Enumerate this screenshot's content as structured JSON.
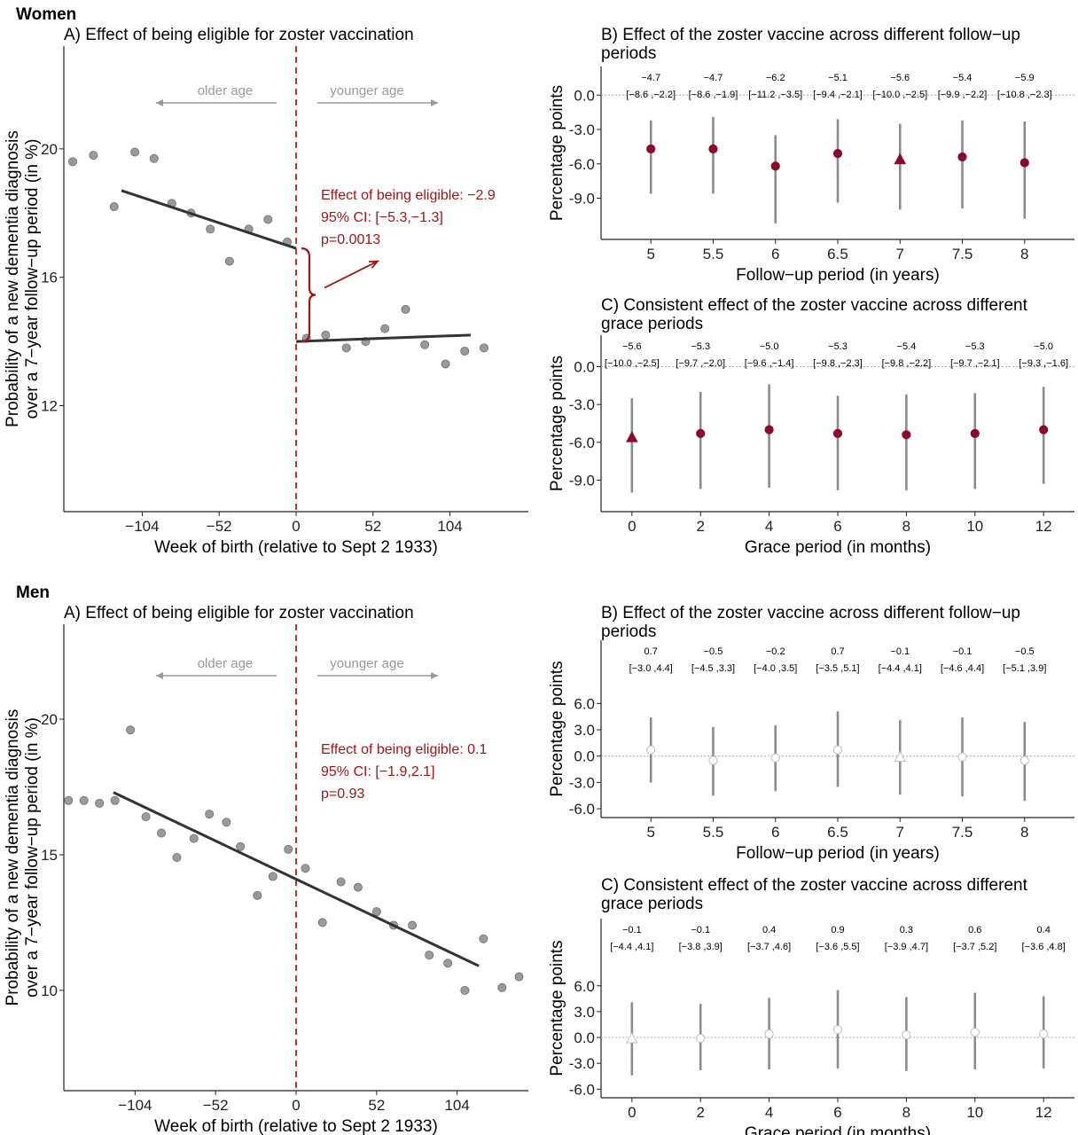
{
  "colors": {
    "point_filled": "#8b0a2b",
    "ci_line": "#8c8c8c",
    "rd_line": "#333333",
    "cutoff": "#c0392b",
    "annotation": "#a31515",
    "arrow_grey": "#999999",
    "scatter_fill": "#9a9a9a"
  },
  "sections": [
    {
      "label": "Women"
    },
    {
      "label": "Men"
    }
  ],
  "chart_data": [
    {
      "id": "women-A",
      "section": "Women",
      "type": "scatter",
      "title": "A) Effect of being eligible for zoster vaccination",
      "xlabel": "Week of birth (relative to Sept 2 1933)",
      "ylabel": "Probability of a new dementia diagnosis\nover a 7−year follow−up period (in %)",
      "xlim": [
        -157,
        157
      ],
      "ylim": [
        8.7,
        23.2
      ],
      "xticks": [
        -104,
        -52,
        0,
        52,
        104
      ],
      "xtick_labels": [
        "−104",
        "−52",
        "0",
        "52",
        "104"
      ],
      "yticks": [
        12,
        16,
        20
      ],
      "ytick_labels": [
        "12",
        "16",
        "20"
      ],
      "direction_labels": {
        "left": "older age",
        "right": "younger age"
      },
      "annotation": [
        "Effect of being eligible: −2.9",
        "95% CI: [−5.3,−1.3]",
        "p=0.0013"
      ],
      "points": [
        [
          -151,
          19.6
        ],
        [
          -137,
          19.8
        ],
        [
          -123,
          18.2
        ],
        [
          -109,
          19.9
        ],
        [
          -96,
          19.7
        ],
        [
          -84,
          18.3
        ],
        [
          -71,
          18.0
        ],
        [
          -58,
          17.5
        ],
        [
          -45,
          16.5
        ],
        [
          -32,
          17.5
        ],
        [
          -19,
          17.8
        ],
        [
          -6,
          17.1
        ],
        [
          7,
          14.1
        ],
        [
          20,
          14.2
        ],
        [
          34,
          13.8
        ],
        [
          47,
          14.0
        ],
        [
          60,
          14.4
        ],
        [
          74,
          15.0
        ],
        [
          87,
          13.9
        ],
        [
          101,
          13.3
        ],
        [
          114,
          13.7
        ],
        [
          127,
          13.8
        ]
      ],
      "fit_left": [
        [
          -118,
          18.7
        ],
        [
          0,
          16.9
        ]
      ],
      "fit_right": [
        [
          0,
          14.0
        ],
        [
          118,
          14.2
        ]
      ],
      "gap": [
        14.0,
        16.9
      ]
    },
    {
      "id": "women-B",
      "section": "Women",
      "type": "scatter",
      "title": "B) Effect of the zoster vaccine across different follow−up\nperiods",
      "xlabel": "Follow−up period (in years)",
      "ylabel": "Percentage points",
      "xlim": [
        4.6,
        8.4
      ],
      "ylim": [
        -12.6,
        2.5
      ],
      "xticks": [
        5,
        5.5,
        6,
        6.5,
        7,
        7.5,
        8
      ],
      "xtick_labels": [
        "5",
        "5.5",
        "6",
        "6.5",
        "7",
        "7.5",
        "8"
      ],
      "yticks": [
        0,
        -3,
        -6,
        -9
      ],
      "ytick_labels": [
        "0.0",
        "-3.0",
        "-6.0",
        "-9.0"
      ],
      "x": [
        5,
        5.5,
        6,
        6.5,
        7,
        7.5,
        8
      ],
      "est": [
        -4.7,
        -4.7,
        -6.2,
        -5.1,
        -5.6,
        -5.4,
        -5.9
      ],
      "lo": [
        -8.6,
        -8.6,
        -11.2,
        -9.4,
        -10.0,
        -9.9,
        -10.8
      ],
      "hi": [
        -2.2,
        -1.9,
        -3.5,
        -2.1,
        -2.5,
        -2.2,
        -2.3
      ],
      "est_labels": [
        "−4.7",
        "−4.7",
        "−6.2",
        "−5.1",
        "−5.6",
        "−5.4",
        "−5.9"
      ],
      "ci_labels": [
        "[−8.6 ,−2.2]",
        "[−8.6 ,−1.9]",
        "[−11.2 ,−3.5]",
        "[−9.4 ,−2.1]",
        "[−10.0 ,−2.5]",
        "[−9.9 ,−2.2]",
        "[−10.8 ,−2.3]"
      ],
      "shape": [
        "circle",
        "circle",
        "circle",
        "circle",
        "triangle",
        "circle",
        "circle"
      ],
      "filled": true
    },
    {
      "id": "women-C",
      "section": "Women",
      "type": "scatter",
      "title": "C) Consistent effect of the zoster vaccine across different\ngrace periods",
      "xlabel": "Grace period (in months)",
      "ylabel": "Percentage points",
      "xlim": [
        -0.9,
        12.9
      ],
      "ylim": [
        -11.5,
        2.5
      ],
      "xticks": [
        0,
        2,
        4,
        6,
        8,
        10,
        12
      ],
      "xtick_labels": [
        "0",
        "2",
        "4",
        "6",
        "8",
        "10",
        "12"
      ],
      "yticks": [
        0,
        -3,
        -6,
        -9
      ],
      "ytick_labels": [
        "0.0",
        "-3.0",
        "-6.0",
        "-9.0"
      ],
      "x": [
        0,
        2,
        4,
        6,
        8,
        10,
        12
      ],
      "est": [
        -5.6,
        -5.3,
        -5.0,
        -5.3,
        -5.4,
        -5.3,
        -5.0
      ],
      "lo": [
        -10.0,
        -9.7,
        -9.6,
        -9.8,
        -9.8,
        -9.7,
        -9.3
      ],
      "hi": [
        -2.5,
        -2.0,
        -1.4,
        -2.3,
        -2.2,
        -2.1,
        -1.6
      ],
      "est_labels": [
        "−5.6",
        "−5.3",
        "−5.0",
        "−5.3",
        "−5.4",
        "−5.3",
        "−5.0"
      ],
      "ci_labels": [
        "[−10.0 ,−2.5]",
        "[−9.7 ,−2.0]",
        "[−9.6 ,−1.4]",
        "[−9.8 ,−2.3]",
        "[−9.8 ,−2.2]",
        "[−9.7 ,−2.1]",
        "[−9.3 ,−1.6]"
      ],
      "shape": [
        "triangle",
        "circle",
        "circle",
        "circle",
        "circle",
        "circle",
        "circle"
      ],
      "filled": true
    },
    {
      "id": "men-A",
      "section": "Men",
      "type": "scatter",
      "title": "A) Effect of being eligible for zoster vaccination",
      "xlabel": "Week of birth (relative to Sept 2 1933)",
      "ylabel": "Probability of a new dementia diagnosis\nover a 7−year follow−up period (in %)",
      "xlim": [
        -150,
        150
      ],
      "ylim": [
        6.3,
        23.5
      ],
      "xticks": [
        -104,
        -52,
        0,
        52,
        104
      ],
      "xtick_labels": [
        "−104",
        "−52",
        "0",
        "52",
        "104"
      ],
      "yticks": [
        10,
        15,
        20
      ],
      "ytick_labels": [
        "10",
        "15",
        "20"
      ],
      "direction_labels": {
        "left": "older age",
        "right": "younger age"
      },
      "annotation": [
        "Effect of being eligible: 0.1",
        "95% CI: [−1.9,2.1]",
        "p=0.93"
      ],
      "points": [
        [
          -147,
          17.0
        ],
        [
          -137,
          17.0
        ],
        [
          -127,
          16.9
        ],
        [
          -117,
          17.0
        ],
        [
          -107,
          19.6
        ],
        [
          -97,
          16.4
        ],
        [
          -87,
          15.8
        ],
        [
          -77,
          14.9
        ],
        [
          -66,
          15.6
        ],
        [
          -56,
          16.5
        ],
        [
          -45,
          16.2
        ],
        [
          -36,
          15.3
        ],
        [
          -25,
          13.5
        ],
        [
          -15,
          14.2
        ],
        [
          -5,
          15.2
        ],
        [
          6,
          14.5
        ],
        [
          17,
          12.5
        ],
        [
          29,
          14.0
        ],
        [
          40,
          13.8
        ],
        [
          52,
          12.9
        ],
        [
          63,
          12.4
        ],
        [
          75,
          12.4
        ],
        [
          86,
          11.3
        ],
        [
          98,
          11.0
        ],
        [
          109,
          10.0
        ],
        [
          121,
          11.9
        ],
        [
          133,
          10.1
        ],
        [
          144,
          10.5
        ]
      ],
      "fit_left": [
        [
          -118,
          17.3
        ],
        [
          0,
          14.1
        ]
      ],
      "fit_right": [
        [
          0,
          14.1
        ],
        [
          118,
          10.9
        ]
      ]
    },
    {
      "id": "men-B",
      "section": "Men",
      "type": "scatter",
      "title": "B) Effect of the zoster vaccine across different follow−up\nperiods",
      "xlabel": "Follow−up period (in years)",
      "ylabel": "Percentage points",
      "xlim": [
        4.6,
        8.4
      ],
      "ylim": [
        -7.0,
        13.2
      ],
      "xticks": [
        5,
        5.5,
        6,
        6.5,
        7,
        7.5,
        8
      ],
      "xtick_labels": [
        "5",
        "5.5",
        "6",
        "6.5",
        "7",
        "7.5",
        "8"
      ],
      "yticks": [
        6,
        3,
        0,
        -3,
        -6
      ],
      "ytick_labels": [
        "6.0",
        "3.0",
        "0.0",
        "-3.0",
        "-6.0"
      ],
      "x": [
        5,
        5.5,
        6,
        6.5,
        7,
        7.5,
        8
      ],
      "est": [
        0.7,
        -0.5,
        -0.2,
        0.7,
        -0.1,
        -0.1,
        -0.5
      ],
      "lo": [
        -3.0,
        -4.5,
        -4.0,
        -3.5,
        -4.4,
        -4.6,
        -5.1
      ],
      "hi": [
        4.4,
        3.3,
        3.5,
        5.1,
        4.1,
        4.4,
        3.9
      ],
      "est_labels": [
        "0.7",
        "−0.5",
        "−0.2",
        "0.7",
        "−0.1",
        "−0.1",
        "−0.5"
      ],
      "ci_labels": [
        "[−3.0 ,4.4]",
        "[−4.5 ,3.3]",
        "[−4.0 ,3.5]",
        "[−3.5 ,5.1]",
        "[−4.4 ,4.1]",
        "[−4.6 ,4.4]",
        "[−5.1 ,3.9]"
      ],
      "shape": [
        "circle",
        "circle",
        "circle",
        "circle",
        "triangle",
        "circle",
        "circle"
      ],
      "filled": false
    },
    {
      "id": "men-C",
      "section": "Men",
      "type": "scatter",
      "title": "C) Consistent effect of the zoster vaccine across different\ngrace periods",
      "xlabel": "Grace period (in months)",
      "ylabel": "Percentage points",
      "xlim": [
        -0.9,
        12.9
      ],
      "ylim": [
        -7.0,
        13.8
      ],
      "xticks": [
        0,
        2,
        4,
        6,
        8,
        10,
        12
      ],
      "xtick_labels": [
        "0",
        "2",
        "4",
        "6",
        "8",
        "10",
        "12"
      ],
      "yticks": [
        6,
        3,
        0,
        -3,
        -6
      ],
      "ytick_labels": [
        "6.0",
        "3.0",
        "0.0",
        "-3.0",
        "-6.0"
      ],
      "x": [
        0,
        2,
        4,
        6,
        8,
        10,
        12
      ],
      "est": [
        -0.1,
        -0.1,
        0.4,
        0.9,
        0.3,
        0.6,
        0.4
      ],
      "lo": [
        -4.4,
        -3.8,
        -3.7,
        -3.6,
        -3.9,
        -3.7,
        -3.6
      ],
      "hi": [
        4.1,
        3.9,
        4.6,
        5.5,
        4.7,
        5.2,
        4.8
      ],
      "est_labels": [
        "−0.1",
        "−0.1",
        "0.4",
        "0.9",
        "0.3",
        "0.6",
        "0.4"
      ],
      "ci_labels": [
        "[−4.4 ,4.1]",
        "[−3.8 ,3.9]",
        "[−3.7 ,4.6]",
        "[−3.6 ,5.5]",
        "[−3.9 ,4.7]",
        "[−3.7 ,5.2]",
        "[−3.6 ,4.8]"
      ],
      "shape": [
        "triangle",
        "circle",
        "circle",
        "circle",
        "circle",
        "circle",
        "circle"
      ],
      "filled": false
    }
  ]
}
